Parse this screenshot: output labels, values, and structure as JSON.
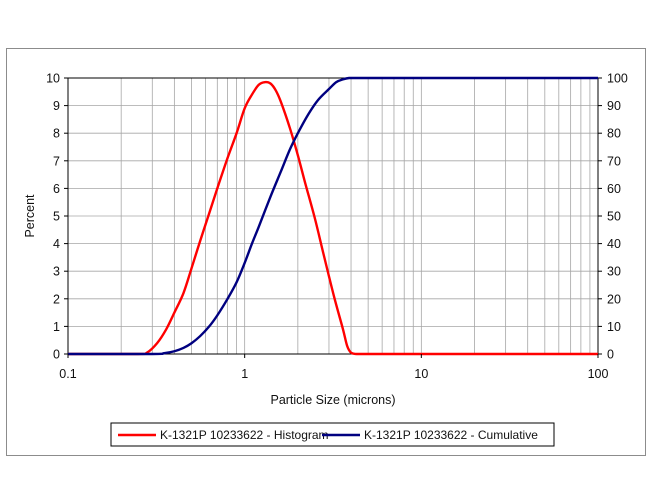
{
  "chart_data": {
    "type": "line",
    "title": "",
    "xlabel": "Particle Size (microns)",
    "ylabel": "Percent",
    "y2label": "",
    "xscale": "log",
    "xlim": [
      0.1,
      100
    ],
    "ylim": [
      0,
      10
    ],
    "y2lim": [
      0,
      100
    ],
    "x_ticks": [
      "0.1",
      "1",
      "10",
      "100"
    ],
    "y_ticks": [
      "0",
      "1",
      "2",
      "3",
      "4",
      "5",
      "6",
      "7",
      "8",
      "9",
      "10"
    ],
    "y2_ticks": [
      "0",
      "10",
      "20",
      "30",
      "40",
      "50",
      "60",
      "70",
      "80",
      "90",
      "100"
    ],
    "grid": true,
    "legend_position": "bottom",
    "series": [
      {
        "name": "K-1321P 10233622 - Histogram",
        "axis": "left",
        "color": "#ff0000",
        "x": [
          0.1,
          0.25,
          0.28,
          0.32,
          0.36,
          0.4,
          0.45,
          0.5,
          0.56,
          0.63,
          0.7,
          0.8,
          0.9,
          1.0,
          1.1,
          1.2,
          1.3,
          1.4,
          1.5,
          1.6,
          1.8,
          2.0,
          2.2,
          2.5,
          2.8,
          3.2,
          3.6,
          3.8,
          4.0,
          4.3,
          5,
          10,
          100
        ],
        "y": [
          0,
          0,
          0.05,
          0.4,
          0.9,
          1.5,
          2.2,
          3.1,
          4.1,
          5.1,
          6.0,
          7.1,
          8.0,
          8.9,
          9.4,
          9.75,
          9.85,
          9.8,
          9.55,
          9.15,
          8.2,
          7.2,
          6.2,
          4.9,
          3.6,
          2.1,
          0.9,
          0.3,
          0.05,
          0,
          0,
          0,
          0
        ]
      },
      {
        "name": "K-1321P 10233622 - Cumulative",
        "axis": "right",
        "color": "#000080",
        "x": [
          0.1,
          0.3,
          0.35,
          0.4,
          0.45,
          0.5,
          0.56,
          0.63,
          0.7,
          0.8,
          0.9,
          1.0,
          1.1,
          1.2,
          1.4,
          1.6,
          1.8,
          2.0,
          2.3,
          2.6,
          3.0,
          3.3,
          3.6,
          3.9,
          4.2,
          5,
          10,
          100
        ],
        "y": [
          0,
          0,
          0.3,
          1.0,
          2.2,
          3.9,
          6.5,
          10,
          14,
          20,
          26,
          33,
          40,
          46,
          57,
          66,
          74,
          80,
          87,
          92,
          96,
          98.5,
          99.5,
          100,
          100,
          100,
          100,
          100
        ]
      }
    ]
  }
}
